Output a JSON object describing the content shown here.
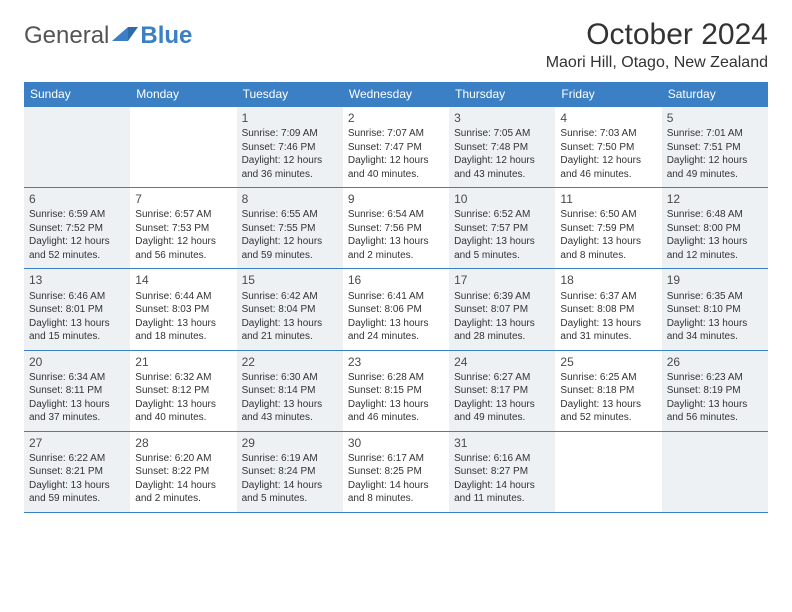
{
  "brand": {
    "word1": "General",
    "word2": "Blue"
  },
  "title": "October 2024",
  "subtitle": "Maori Hill, Otago, New Zealand",
  "colors": {
    "header_bg": "#3b7fc4",
    "header_text": "#ffffff",
    "shaded_cell_bg": "#eef1f4",
    "text": "#333333"
  },
  "day_headers": [
    "Sunday",
    "Monday",
    "Tuesday",
    "Wednesday",
    "Thursday",
    "Friday",
    "Saturday"
  ],
  "weeks": [
    [
      {
        "day": "",
        "shaded": true
      },
      {
        "day": "",
        "shaded": false
      },
      {
        "day": "1",
        "shaded": true,
        "sunrise": "Sunrise: 7:09 AM",
        "sunset": "Sunset: 7:46 PM",
        "daylight": "Daylight: 12 hours and 36 minutes."
      },
      {
        "day": "2",
        "shaded": false,
        "sunrise": "Sunrise: 7:07 AM",
        "sunset": "Sunset: 7:47 PM",
        "daylight": "Daylight: 12 hours and 40 minutes."
      },
      {
        "day": "3",
        "shaded": true,
        "sunrise": "Sunrise: 7:05 AM",
        "sunset": "Sunset: 7:48 PM",
        "daylight": "Daylight: 12 hours and 43 minutes."
      },
      {
        "day": "4",
        "shaded": false,
        "sunrise": "Sunrise: 7:03 AM",
        "sunset": "Sunset: 7:50 PM",
        "daylight": "Daylight: 12 hours and 46 minutes."
      },
      {
        "day": "5",
        "shaded": true,
        "sunrise": "Sunrise: 7:01 AM",
        "sunset": "Sunset: 7:51 PM",
        "daylight": "Daylight: 12 hours and 49 minutes."
      }
    ],
    [
      {
        "day": "6",
        "shaded": true,
        "sunrise": "Sunrise: 6:59 AM",
        "sunset": "Sunset: 7:52 PM",
        "daylight": "Daylight: 12 hours and 52 minutes."
      },
      {
        "day": "7",
        "shaded": false,
        "sunrise": "Sunrise: 6:57 AM",
        "sunset": "Sunset: 7:53 PM",
        "daylight": "Daylight: 12 hours and 56 minutes."
      },
      {
        "day": "8",
        "shaded": true,
        "sunrise": "Sunrise: 6:55 AM",
        "sunset": "Sunset: 7:55 PM",
        "daylight": "Daylight: 12 hours and 59 minutes."
      },
      {
        "day": "9",
        "shaded": false,
        "sunrise": "Sunrise: 6:54 AM",
        "sunset": "Sunset: 7:56 PM",
        "daylight": "Daylight: 13 hours and 2 minutes."
      },
      {
        "day": "10",
        "shaded": true,
        "sunrise": "Sunrise: 6:52 AM",
        "sunset": "Sunset: 7:57 PM",
        "daylight": "Daylight: 13 hours and 5 minutes."
      },
      {
        "day": "11",
        "shaded": false,
        "sunrise": "Sunrise: 6:50 AM",
        "sunset": "Sunset: 7:59 PM",
        "daylight": "Daylight: 13 hours and 8 minutes."
      },
      {
        "day": "12",
        "shaded": true,
        "sunrise": "Sunrise: 6:48 AM",
        "sunset": "Sunset: 8:00 PM",
        "daylight": "Daylight: 13 hours and 12 minutes."
      }
    ],
    [
      {
        "day": "13",
        "shaded": true,
        "sunrise": "Sunrise: 6:46 AM",
        "sunset": "Sunset: 8:01 PM",
        "daylight": "Daylight: 13 hours and 15 minutes."
      },
      {
        "day": "14",
        "shaded": false,
        "sunrise": "Sunrise: 6:44 AM",
        "sunset": "Sunset: 8:03 PM",
        "daylight": "Daylight: 13 hours and 18 minutes."
      },
      {
        "day": "15",
        "shaded": true,
        "sunrise": "Sunrise: 6:42 AM",
        "sunset": "Sunset: 8:04 PM",
        "daylight": "Daylight: 13 hours and 21 minutes."
      },
      {
        "day": "16",
        "shaded": false,
        "sunrise": "Sunrise: 6:41 AM",
        "sunset": "Sunset: 8:06 PM",
        "daylight": "Daylight: 13 hours and 24 minutes."
      },
      {
        "day": "17",
        "shaded": true,
        "sunrise": "Sunrise: 6:39 AM",
        "sunset": "Sunset: 8:07 PM",
        "daylight": "Daylight: 13 hours and 28 minutes."
      },
      {
        "day": "18",
        "shaded": false,
        "sunrise": "Sunrise: 6:37 AM",
        "sunset": "Sunset: 8:08 PM",
        "daylight": "Daylight: 13 hours and 31 minutes."
      },
      {
        "day": "19",
        "shaded": true,
        "sunrise": "Sunrise: 6:35 AM",
        "sunset": "Sunset: 8:10 PM",
        "daylight": "Daylight: 13 hours and 34 minutes."
      }
    ],
    [
      {
        "day": "20",
        "shaded": true,
        "sunrise": "Sunrise: 6:34 AM",
        "sunset": "Sunset: 8:11 PM",
        "daylight": "Daylight: 13 hours and 37 minutes."
      },
      {
        "day": "21",
        "shaded": false,
        "sunrise": "Sunrise: 6:32 AM",
        "sunset": "Sunset: 8:12 PM",
        "daylight": "Daylight: 13 hours and 40 minutes."
      },
      {
        "day": "22",
        "shaded": true,
        "sunrise": "Sunrise: 6:30 AM",
        "sunset": "Sunset: 8:14 PM",
        "daylight": "Daylight: 13 hours and 43 minutes."
      },
      {
        "day": "23",
        "shaded": false,
        "sunrise": "Sunrise: 6:28 AM",
        "sunset": "Sunset: 8:15 PM",
        "daylight": "Daylight: 13 hours and 46 minutes."
      },
      {
        "day": "24",
        "shaded": true,
        "sunrise": "Sunrise: 6:27 AM",
        "sunset": "Sunset: 8:17 PM",
        "daylight": "Daylight: 13 hours and 49 minutes."
      },
      {
        "day": "25",
        "shaded": false,
        "sunrise": "Sunrise: 6:25 AM",
        "sunset": "Sunset: 8:18 PM",
        "daylight": "Daylight: 13 hours and 52 minutes."
      },
      {
        "day": "26",
        "shaded": true,
        "sunrise": "Sunrise: 6:23 AM",
        "sunset": "Sunset: 8:19 PM",
        "daylight": "Daylight: 13 hours and 56 minutes."
      }
    ],
    [
      {
        "day": "27",
        "shaded": true,
        "sunrise": "Sunrise: 6:22 AM",
        "sunset": "Sunset: 8:21 PM",
        "daylight": "Daylight: 13 hours and 59 minutes."
      },
      {
        "day": "28",
        "shaded": false,
        "sunrise": "Sunrise: 6:20 AM",
        "sunset": "Sunset: 8:22 PM",
        "daylight": "Daylight: 14 hours and 2 minutes."
      },
      {
        "day": "29",
        "shaded": true,
        "sunrise": "Sunrise: 6:19 AM",
        "sunset": "Sunset: 8:24 PM",
        "daylight": "Daylight: 14 hours and 5 minutes."
      },
      {
        "day": "30",
        "shaded": false,
        "sunrise": "Sunrise: 6:17 AM",
        "sunset": "Sunset: 8:25 PM",
        "daylight": "Daylight: 14 hours and 8 minutes."
      },
      {
        "day": "31",
        "shaded": true,
        "sunrise": "Sunrise: 6:16 AM",
        "sunset": "Sunset: 8:27 PM",
        "daylight": "Daylight: 14 hours and 11 minutes."
      },
      {
        "day": "",
        "shaded": false
      },
      {
        "day": "",
        "shaded": true
      }
    ]
  ]
}
